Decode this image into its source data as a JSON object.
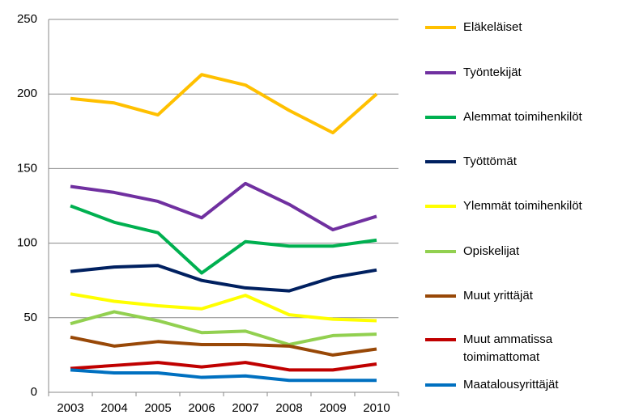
{
  "chart_data": {
    "type": "line",
    "categories": [
      "2003",
      "2004",
      "2005",
      "2006",
      "2007",
      "2008",
      "2009",
      "2010"
    ],
    "ylim": [
      0,
      250
    ],
    "yticks": [
      0,
      50,
      100,
      150,
      200,
      250
    ],
    "grid": true,
    "series": [
      {
        "name": "Eläkeläiset",
        "color": "#FFC000",
        "values": [
          197,
          194,
          186,
          213,
          206,
          189,
          174,
          200
        ]
      },
      {
        "name": "Työntekijät",
        "color": "#7030A0",
        "values": [
          138,
          134,
          128,
          117,
          140,
          126,
          109,
          118
        ]
      },
      {
        "name": "Alemmat toimihenkilöt",
        "color": "#00B050",
        "values": [
          125,
          114,
          107,
          80,
          101,
          98,
          98,
          102
        ]
      },
      {
        "name": "Työttömät",
        "color": "#002060",
        "values": [
          81,
          84,
          85,
          75,
          70,
          68,
          77,
          82
        ]
      },
      {
        "name": "Ylemmät toimihenkilöt",
        "color": "#FFFF00",
        "values": [
          66,
          61,
          58,
          56,
          65,
          52,
          49,
          48
        ]
      },
      {
        "name": "Opiskelijat",
        "color": "#92D050",
        "values": [
          46,
          54,
          48,
          40,
          41,
          32,
          38,
          39
        ]
      },
      {
        "name": "Muut yrittäjät",
        "color": "#984807",
        "values": [
          37,
          31,
          34,
          32,
          32,
          31,
          25,
          29
        ]
      },
      {
        "name": "Muut ammatissa toimimattomat",
        "color": "#C00000",
        "values": [
          16,
          18,
          20,
          17,
          20,
          15,
          15,
          19
        ]
      },
      {
        "name": "Maatalousyrittäjät",
        "color": "#0070C0",
        "values": [
          15,
          13,
          13,
          10,
          11,
          8,
          8,
          8
        ]
      }
    ]
  }
}
